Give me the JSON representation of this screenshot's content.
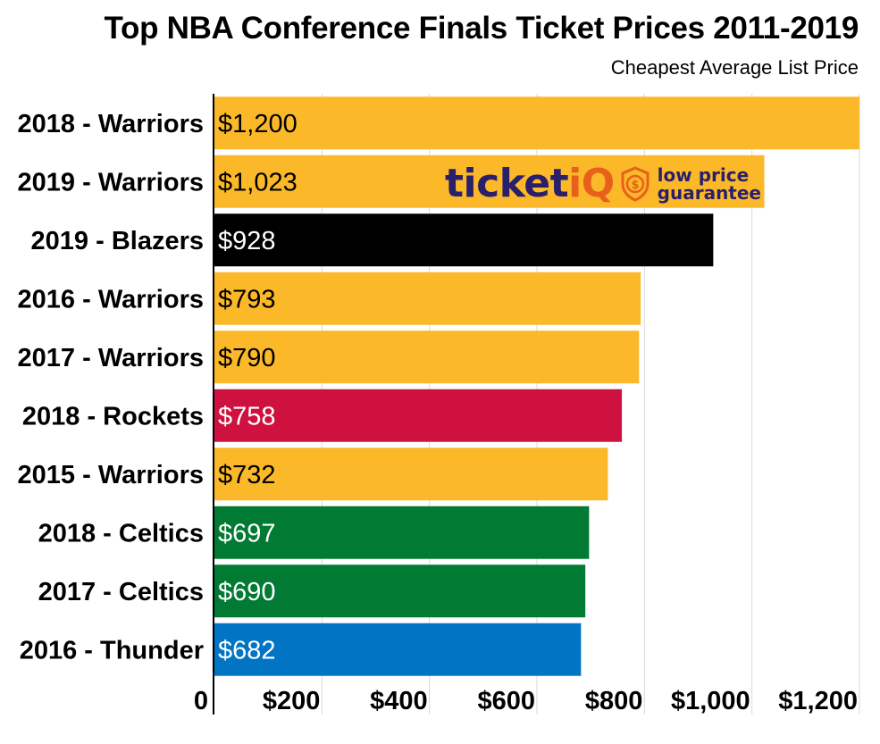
{
  "title": "Top NBA Conference Finals Ticket Prices 2011-2019",
  "subtitle": "Cheapest  Average List Price",
  "logo": {
    "brand_main": "ticket",
    "brand_accent": "iQ",
    "tagline_line1": "low price",
    "tagline_line2": "guarantee"
  },
  "chart_data": {
    "type": "bar",
    "orientation": "horizontal",
    "title": "Top NBA Conference Finals Ticket Prices 2011-2019",
    "subtitle": "Cheapest  Average List Price",
    "categories": [
      "2018 - Warriors",
      "2019 - Warriors",
      "2019 - Blazers",
      "2016 - Warriors",
      "2017 - Warriors",
      "2018 - Rockets",
      "2015 - Warriors",
      "2018 - Celtics",
      "2017 - Celtics",
      "2016 - Thunder"
    ],
    "values": [
      1200,
      1023,
      928,
      793,
      790,
      758,
      732,
      697,
      690,
      682
    ],
    "data_labels": [
      "$1,200",
      "$1,023",
      "$928",
      "$793",
      "$790",
      "$758",
      "$732",
      "$697",
      "$690",
      "$682"
    ],
    "colors": [
      "#fbb829",
      "#fbb829",
      "#000000",
      "#fbb829",
      "#fbb829",
      "#cf1140",
      "#fbb829",
      "#017a33",
      "#017a33",
      "#0174c4"
    ],
    "label_colors": [
      "#000000",
      "#000000",
      "#ffffff",
      "#000000",
      "#000000",
      "#ffffff",
      "#000000",
      "#ffffff",
      "#ffffff",
      "#ffffff"
    ],
    "xlim": [
      0,
      1200
    ],
    "xticks": [
      0,
      200,
      400,
      600,
      800,
      1000,
      1200
    ],
    "xtick_labels": [
      "0",
      "$200",
      "$400",
      "$600",
      "$800",
      "$1,000",
      "$1,200"
    ],
    "grid": true
  }
}
